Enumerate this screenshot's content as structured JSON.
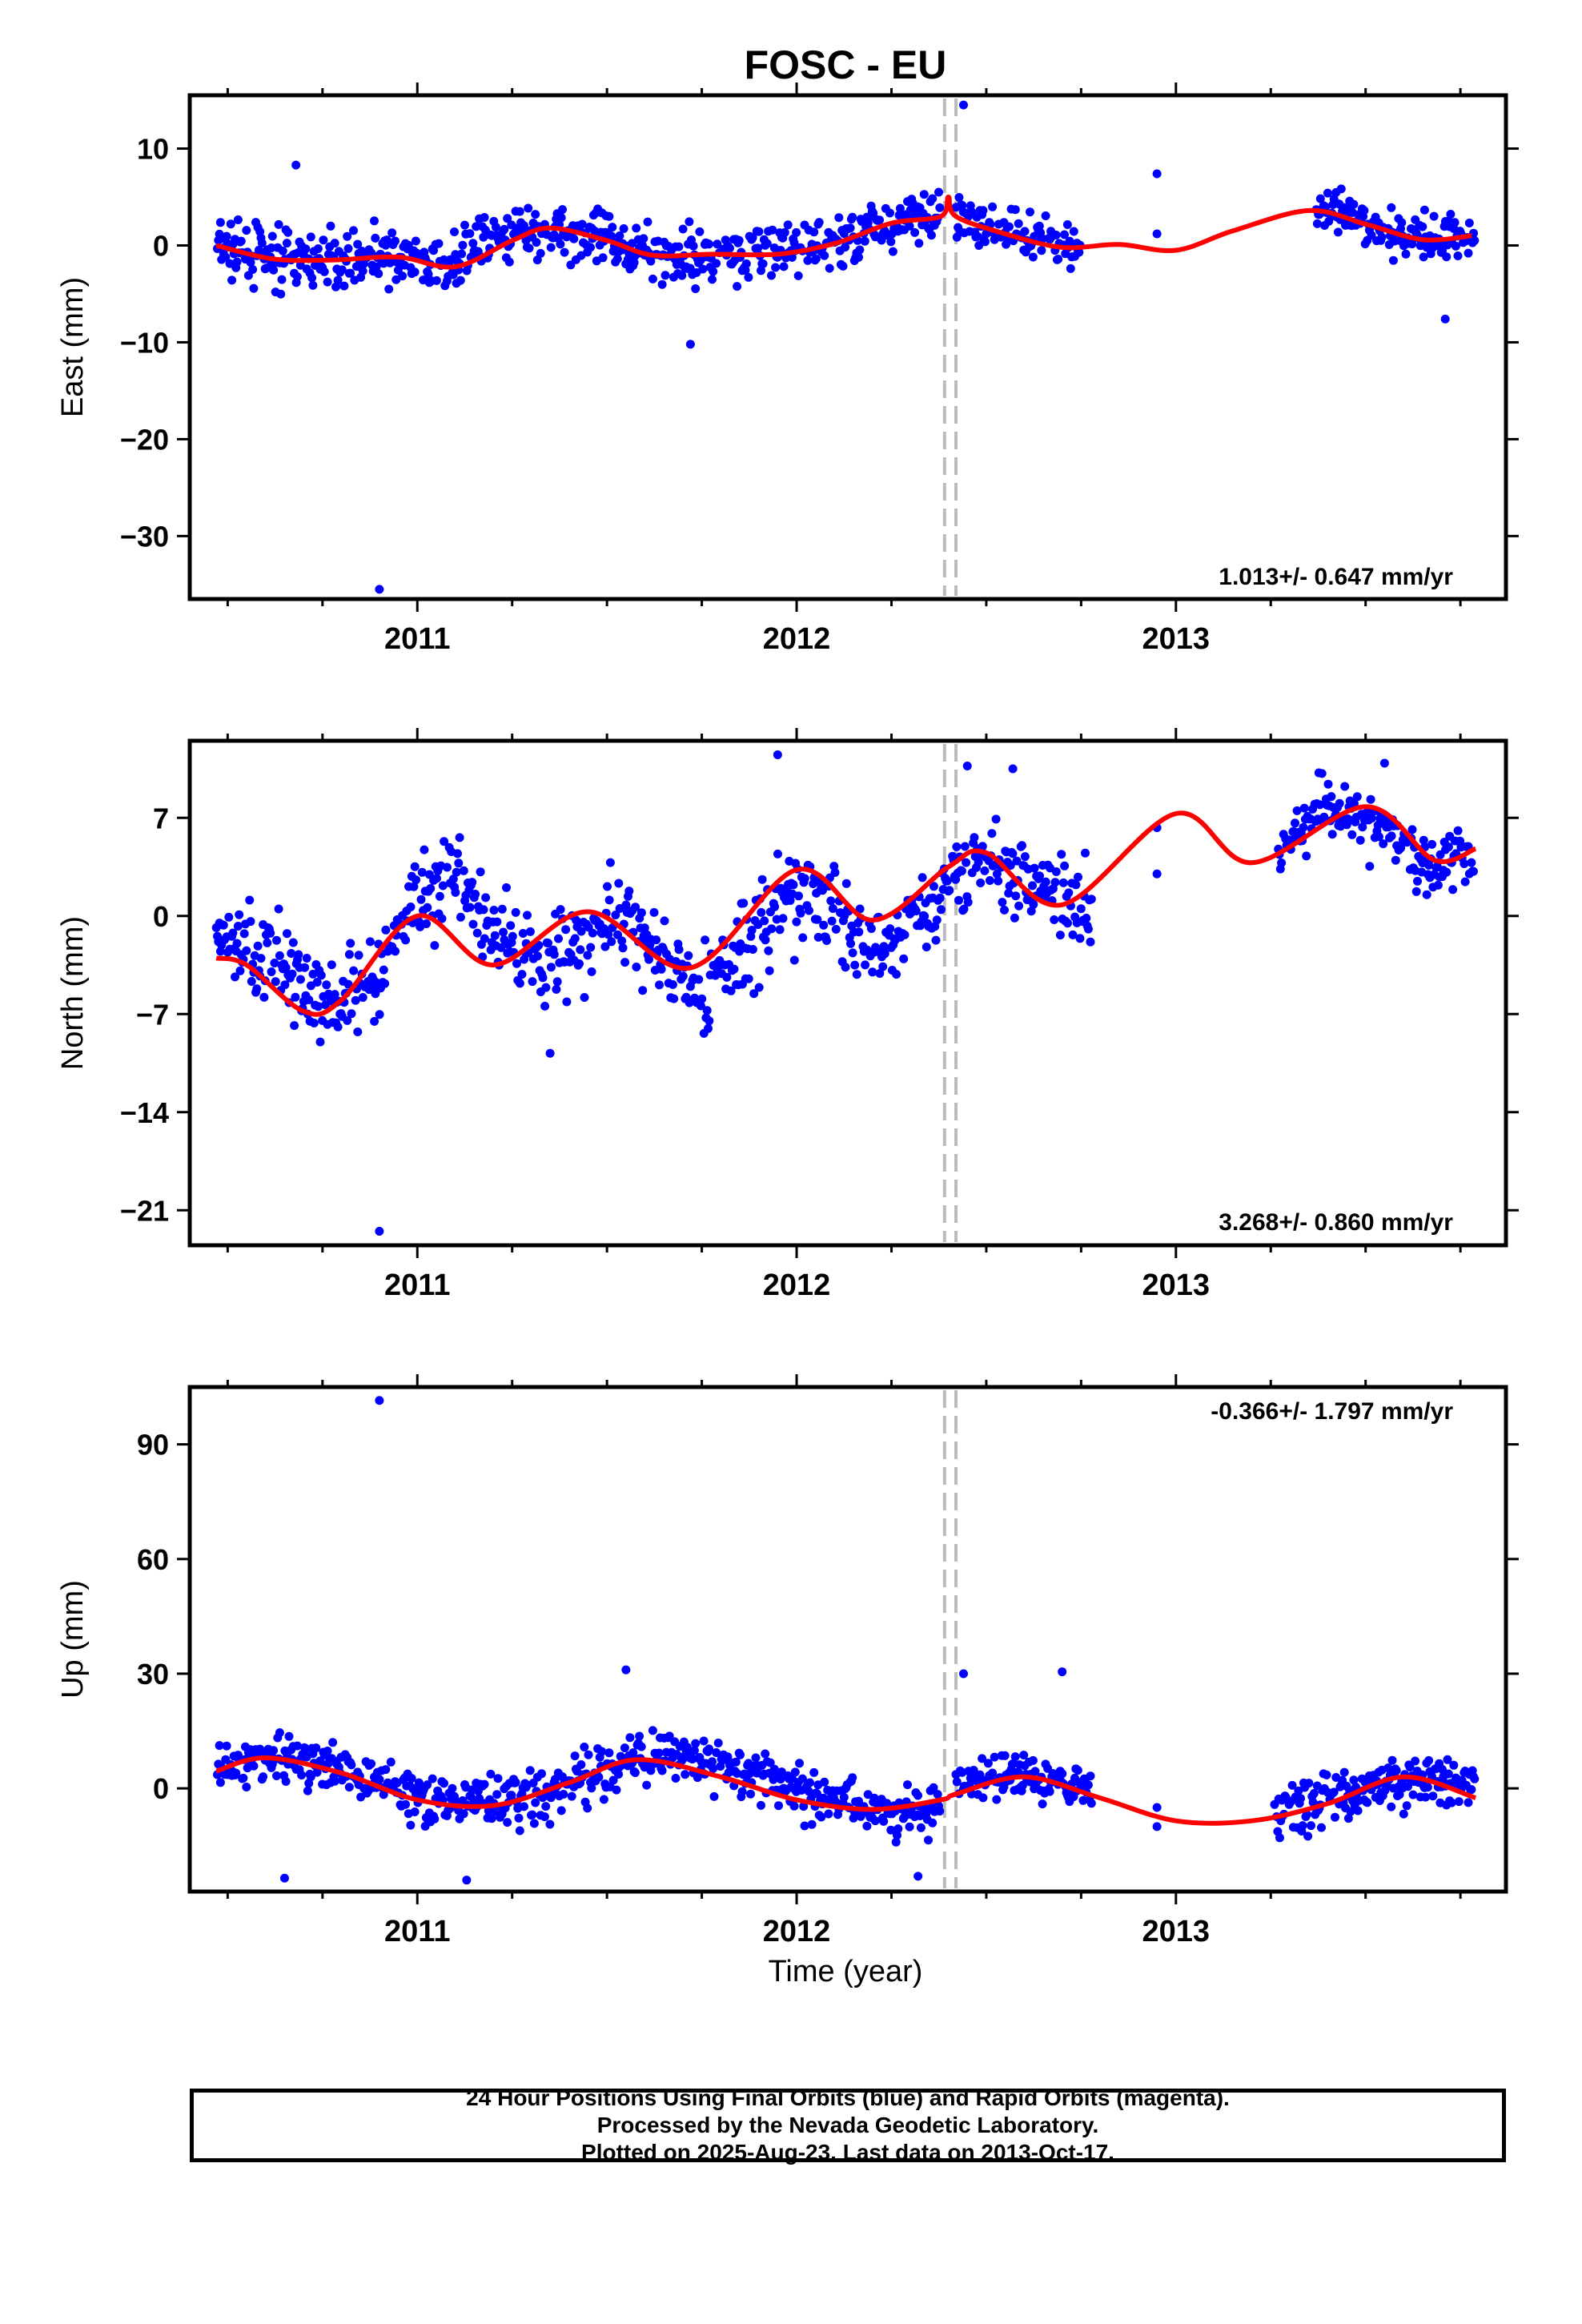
{
  "title": "FOSC - EU",
  "xlabel": "Time (year)",
  "colors": {
    "data": "#0000ff",
    "model": "#ff0000",
    "offset": "#bbbbbb",
    "frame": "#000000"
  },
  "chart_data": [
    {
      "type": "scatter",
      "ylabel": "East (mm)",
      "rate_label": "1.013+/- 0.647 mm/yr",
      "xlim": [
        2010.4,
        2013.87
      ],
      "ylim": [
        -36.5,
        15.5
      ],
      "yticks": [
        10,
        0,
        -10,
        -20,
        -30
      ],
      "ytick_labels": [
        "10",
        "0",
        "−10",
        "−20",
        "−30"
      ],
      "xticks": [
        2011,
        2012,
        2013
      ],
      "xtick_labels": [
        "2011",
        "2012",
        "2013"
      ],
      "offsets": [
        2012.39,
        2012.42
      ],
      "model": {
        "x": [
          2010.47,
          2010.62,
          2010.78,
          2010.95,
          2011.1,
          2011.25,
          2011.35,
          2011.5,
          2011.62,
          2011.78,
          2011.95,
          2012.1,
          2012.25,
          2012.38,
          2012.4,
          2012.42,
          2012.55,
          2012.7,
          2012.85,
          2013.0,
          2013.15,
          2013.35,
          2013.5,
          2013.65,
          2013.78
        ],
        "y": [
          0,
          -1.4,
          -1.5,
          -1.2,
          -2.2,
          0.5,
          1.8,
          0.5,
          -1.0,
          -0.9,
          -0.9,
          0.2,
          2.3,
          3.0,
          5.0,
          3.0,
          1.2,
          -0.2,
          0.1,
          -0.5,
          1.5,
          3.6,
          2.2,
          0.6,
          1.0
        ]
      },
      "segments": [
        {
          "x0": 2010.47,
          "x1": 2012.38,
          "base": [
            0,
            -1.4,
            -1.5,
            -1.2,
            -2.2,
            0.5,
            1.8,
            0.5,
            -1.0,
            -0.9,
            -0.9,
            0.2,
            2.3,
            3.0
          ],
          "spread": 2.4
        },
        {
          "x0": 2012.42,
          "x1": 2012.75,
          "base": [
            3.0,
            1.2,
            -0.2
          ],
          "spread": 2.0
        },
        {
          "x0": 2013.37,
          "x1": 2013.79,
          "base": [
            3.6,
            2.2,
            0.6,
            1.0
          ],
          "spread": 2.2
        }
      ],
      "outliers": [
        {
          "x": 2010.9,
          "y": -35.5
        },
        {
          "x": 2012.44,
          "y": 14.5
        },
        {
          "x": 2011.72,
          "y": -10.2
        },
        {
          "x": 2010.68,
          "y": 8.3
        },
        {
          "x": 2012.95,
          "y": 7.4
        },
        {
          "x": 2012.95,
          "y": 1.2
        },
        {
          "x": 2013.71,
          "y": -7.6
        }
      ]
    },
    {
      "type": "scatter",
      "ylabel": "North (mm)",
      "rate_label": "3.268+/- 0.860 mm/yr",
      "xlim": [
        2010.4,
        2013.87
      ],
      "ylim": [
        -23.5,
        12.5
      ],
      "yticks": [
        7,
        0,
        -7,
        -14,
        -21
      ],
      "ytick_labels": [
        "7",
        "0",
        "−7",
        "−14",
        "−21"
      ],
      "xticks": [
        2011,
        2012,
        2013
      ],
      "xtick_labels": [
        "2011",
        "2012",
        "2013"
      ],
      "offsets": [
        2012.39,
        2012.42
      ],
      "model": {
        "x": [
          2010.47,
          2010.55,
          2010.7,
          2010.8,
          2011.0,
          2011.2,
          2011.45,
          2011.72,
          2012.0,
          2012.2,
          2012.4,
          2012.5,
          2012.7,
          2013.0,
          2013.2,
          2013.5,
          2013.68,
          2013.79
        ],
        "y": [
          -3.0,
          -3.5,
          -6.8,
          -6.0,
          0,
          -3.5,
          0.3,
          -3.7,
          3.3,
          -0.3,
          3.5,
          4.5,
          0.8,
          7.3,
          3.8,
          7.8,
          4.0,
          4.8
        ]
      },
      "segments": [
        {
          "x0": 2010.47,
          "x1": 2012.4,
          "base": [
            -1.0,
            -2.5,
            -4.5,
            -6.0,
            -4.0,
            1.5,
            2.0,
            -1.5,
            -3.0,
            -1.5,
            0,
            -3.5,
            -5.5,
            -2.0,
            1.5,
            0.5,
            -2.5,
            -1.0,
            2.0
          ],
          "spread": 2.8
        },
        {
          "x0": 2012.4,
          "x1": 2012.78,
          "base": [
            3.0,
            4.0,
            2.5,
            0.5
          ],
          "spread": 2.2
        },
        {
          "x0": 2013.27,
          "x1": 2013.79,
          "base": [
            5.5,
            7.5,
            6.5,
            4.0,
            4.5
          ],
          "spread": 2.0
        }
      ],
      "outliers": [
        {
          "x": 2010.9,
          "y": -22.5
        },
        {
          "x": 2011.95,
          "y": 11.5
        },
        {
          "x": 2012.45,
          "y": 10.7
        },
        {
          "x": 2012.57,
          "y": 10.5
        },
        {
          "x": 2012.95,
          "y": 3.0
        },
        {
          "x": 2012.95,
          "y": 6.3
        },
        {
          "x": 2013.55,
          "y": 10.9
        },
        {
          "x": 2011.35,
          "y": -9.8
        }
      ]
    },
    {
      "type": "scatter",
      "ylabel": "Up (mm)",
      "rate_label": "-0.366+/- 1.797 mm/yr",
      "xlim": [
        2010.4,
        2013.87
      ],
      "ylim": [
        -27,
        105
      ],
      "yticks": [
        90,
        60,
        30,
        0
      ],
      "ytick_labels": [
        "90",
        "60",
        "30",
        "0"
      ],
      "xticks": [
        2011,
        2012,
        2013
      ],
      "xtick_labels": [
        "2011",
        "2012",
        "2013"
      ],
      "offsets": [
        2012.39,
        2012.42
      ],
      "model": {
        "x": [
          2010.47,
          2010.6,
          2010.8,
          2011.0,
          2011.2,
          2011.4,
          2011.58,
          2011.8,
          2012.0,
          2012.2,
          2012.38,
          2012.42,
          2012.6,
          2012.8,
          2013.0,
          2013.2,
          2013.4,
          2013.6,
          2013.79
        ],
        "y": [
          4.5,
          8.0,
          4.0,
          -3.0,
          -4.5,
          1.5,
          7.5,
          3.0,
          -3.0,
          -5.5,
          -3.0,
          -1.5,
          3.0,
          -2.5,
          -8.5,
          -8.5,
          -4.0,
          3.0,
          -2.5
        ]
      },
      "segments": [
        {
          "x0": 2010.47,
          "x1": 2012.38,
          "base": [
            4.5,
            8.0,
            6.0,
            1.0,
            -3.0,
            -4.0,
            -2.0,
            5.0,
            9.0,
            6.0,
            2.0,
            -3.0,
            -6.0,
            -4.5
          ],
          "spread": 5.5
        },
        {
          "x0": 2012.42,
          "x1": 2012.78,
          "base": [
            0.5,
            4.0,
            0.0
          ],
          "spread": 5.5
        },
        {
          "x0": 2013.26,
          "x1": 2013.79,
          "base": [
            -6.0,
            -2.0,
            2.0,
            1.5
          ],
          "spread": 5.5
        }
      ],
      "outliers": [
        {
          "x": 2010.9,
          "y": 101.5
        },
        {
          "x": 2012.44,
          "y": 30.0
        },
        {
          "x": 2012.7,
          "y": 30.5
        },
        {
          "x": 2011.55,
          "y": 31.0
        },
        {
          "x": 2010.65,
          "y": -23.5
        },
        {
          "x": 2011.13,
          "y": -24.0
        },
        {
          "x": 2012.32,
          "y": -23.0
        },
        {
          "x": 2012.95,
          "y": -5.0
        },
        {
          "x": 2012.95,
          "y": -10.0
        }
      ]
    }
  ],
  "footer": {
    "line1": "24 Hour Positions Using Final Orbits (blue) and Rapid Orbits (magenta).",
    "line2": "Processed by the Nevada Geodetic Laboratory.",
    "line3": "Plotted on 2025-Aug-23. Last data on 2013-Oct-17."
  }
}
